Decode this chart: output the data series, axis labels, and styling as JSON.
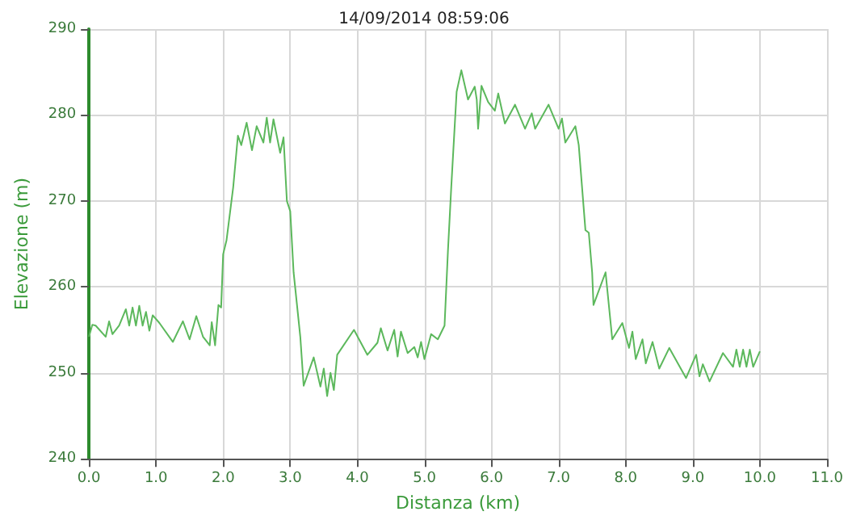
{
  "chart_data": {
    "type": "line",
    "title": "14/09/2014 08:59:06",
    "xlabel": "Distanza (km)",
    "ylabel": "Elevazione (m)",
    "xlim": [
      0,
      11
    ],
    "ylim": [
      240,
      290
    ],
    "xticks": [
      {
        "value": 0,
        "label": "0.0"
      },
      {
        "value": 1,
        "label": "1.0"
      },
      {
        "value": 2,
        "label": "2.0"
      },
      {
        "value": 3,
        "label": "3.0"
      },
      {
        "value": 4,
        "label": "4.0"
      },
      {
        "value": 5,
        "label": "5.0"
      },
      {
        "value": 6,
        "label": "6.0"
      },
      {
        "value": 7,
        "label": "7.0"
      },
      {
        "value": 8,
        "label": "8.0"
      },
      {
        "value": 9,
        "label": "9.0"
      },
      {
        "value": 10,
        "label": "10.0"
      },
      {
        "value": 11,
        "label": "11.0"
      }
    ],
    "yticks": [
      240,
      250,
      260,
      270,
      280,
      290
    ],
    "grid": true,
    "marker": "none",
    "line_style": "solid",
    "series": [
      {
        "color": "#5cb85c",
        "x": [
          0,
          0.05,
          0.1,
          0.25,
          0.3,
          0.35,
          0.45,
          0.55,
          0.6,
          0.65,
          0.7,
          0.75,
          0.8,
          0.85,
          0.9,
          0.95,
          1.05,
          1.25,
          1.4,
          1.5,
          1.6,
          1.7,
          1.8,
          1.83,
          1.88,
          1.93,
          1.97,
          2.0,
          2.05,
          2.15,
          2.22,
          2.27,
          2.35,
          2.43,
          2.5,
          2.6,
          2.65,
          2.7,
          2.75,
          2.85,
          2.9,
          2.95,
          3.0,
          3.05,
          3.15,
          3.2,
          3.35,
          3.45,
          3.5,
          3.55,
          3.6,
          3.65,
          3.7,
          3.95,
          4.15,
          4.3,
          4.35,
          4.45,
          4.55,
          4.6,
          4.65,
          4.75,
          4.85,
          4.9,
          4.95,
          5.0,
          5.1,
          5.2,
          5.3,
          5.35,
          5.4,
          5.48,
          5.55,
          5.65,
          5.75,
          5.78,
          5.8,
          5.85,
          5.95,
          6.05,
          6.1,
          6.2,
          6.35,
          6.5,
          6.6,
          6.65,
          6.85,
          7.0,
          7.05,
          7.1,
          7.25,
          7.3,
          7.4,
          7.45,
          7.5,
          7.52,
          7.7,
          7.8,
          7.95,
          8.05,
          8.1,
          8.15,
          8.25,
          8.3,
          8.4,
          8.5,
          8.65,
          8.9,
          9.05,
          9.1,
          9.15,
          9.25,
          9.45,
          9.6,
          9.65,
          9.7,
          9.75,
          9.8,
          9.85,
          9.9,
          10.0
        ],
        "values": [
          254.2,
          255.6,
          255.5,
          254.2,
          256.0,
          254.5,
          255.5,
          257.4,
          255.5,
          257.6,
          255.5,
          257.8,
          255.5,
          257.1,
          254.9,
          256.7,
          255.8,
          253.6,
          256.0,
          253.9,
          256.6,
          254.2,
          253.2,
          255.9,
          253.2,
          257.9,
          257.6,
          263.8,
          265.4,
          271.6,
          277.6,
          276.5,
          279.1,
          275.9,
          278.7,
          276.8,
          279.7,
          276.8,
          279.5,
          275.6,
          277.4,
          270.0,
          268.8,
          261.7,
          254.2,
          248.5,
          251.8,
          248.4,
          250.5,
          247.3,
          250.0,
          248.0,
          252.1,
          255.0,
          252.1,
          253.5,
          255.2,
          252.6,
          255.0,
          251.9,
          254.8,
          252.3,
          253.0,
          251.8,
          253.6,
          251.6,
          254.5,
          253.9,
          255.5,
          264.1,
          271.6,
          282.7,
          285.2,
          281.8,
          283.3,
          281.8,
          278.4,
          283.4,
          281.5,
          280.5,
          282.5,
          279.0,
          281.2,
          278.4,
          280.2,
          278.4,
          281.2,
          278.4,
          279.6,
          276.8,
          278.7,
          276.5,
          266.6,
          266.3,
          261.7,
          257.9,
          261.7,
          253.9,
          255.8,
          252.9,
          254.8,
          251.6,
          253.9,
          251.1,
          253.6,
          250.5,
          252.9,
          249.4,
          252.1,
          249.6,
          251.0,
          249.0,
          252.3,
          250.7,
          252.7,
          250.7,
          252.7,
          250.7,
          252.7,
          250.7,
          252.5
        ]
      }
    ]
  }
}
